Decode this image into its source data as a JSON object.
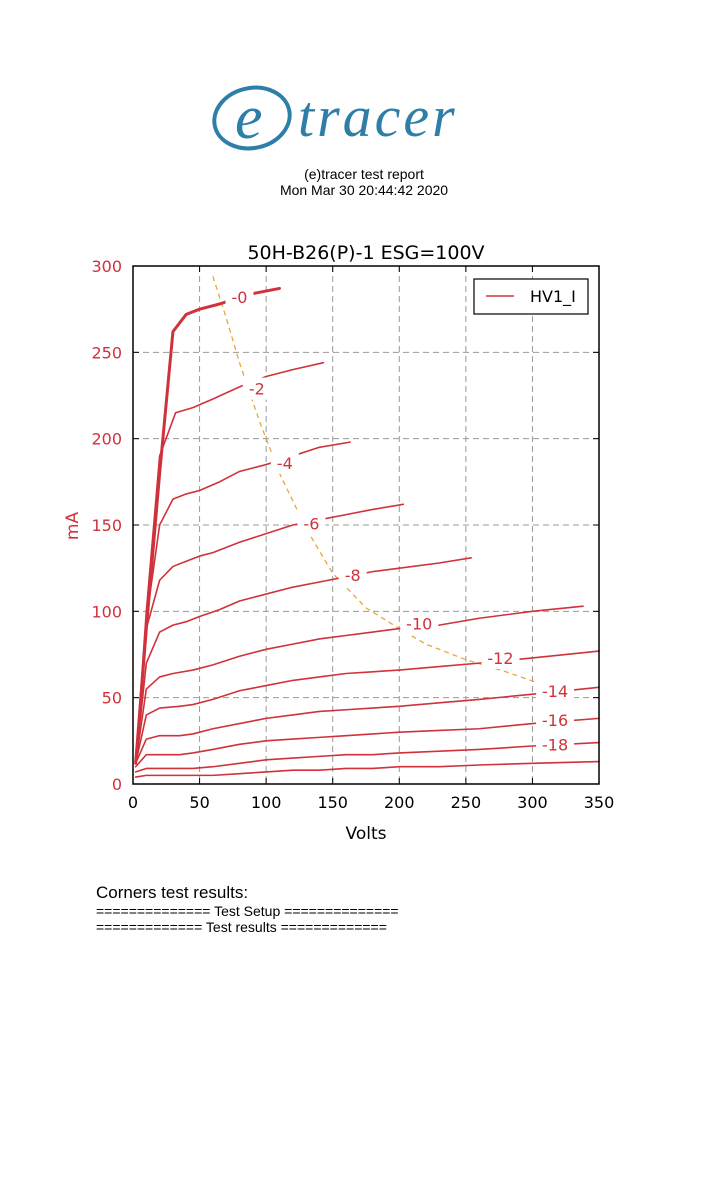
{
  "header": {
    "logo_text": "(e)tracer",
    "report_title": "(e)tracer test report",
    "report_date": "Mon Mar 30 20:44:42 2020"
  },
  "colors": {
    "curve": "#d0323c",
    "axis_text": "#d0323c",
    "load_line": "#e8a838",
    "grid": "#999999",
    "logo": "#2e7fa8"
  },
  "chart_data": {
    "type": "line",
    "title": "50H-B26(P)-1 ESG=100V",
    "xlabel": "Volts",
    "ylabel": "mA",
    "xlim": [
      0,
      350
    ],
    "ylim": [
      0,
      300
    ],
    "xticks": [
      0,
      50,
      100,
      150,
      200,
      250,
      300,
      350
    ],
    "yticks": [
      0,
      50,
      100,
      150,
      200,
      250,
      300
    ],
    "grid": true,
    "legend": {
      "position": "top-right",
      "entries": [
        "HV1_I"
      ]
    },
    "series": [
      {
        "label": "-0",
        "points": [
          [
            2,
            12
          ],
          [
            10,
            90
          ],
          [
            20,
            180
          ],
          [
            30,
            262
          ],
          [
            40,
            272
          ],
          [
            50,
            275
          ],
          [
            65,
            278
          ],
          [
            90,
            284
          ],
          [
            110,
            287
          ]
        ]
      },
      {
        "label": "-2",
        "points": [
          [
            2,
            12
          ],
          [
            10,
            100
          ],
          [
            20,
            190
          ],
          [
            32,
            215
          ],
          [
            45,
            218
          ],
          [
            60,
            223
          ],
          [
            80,
            230
          ],
          [
            100,
            236
          ],
          [
            120,
            240
          ],
          [
            143,
            244
          ]
        ]
      },
      {
        "label": "-4",
        "points": [
          [
            2,
            12
          ],
          [
            10,
            95
          ],
          [
            20,
            150
          ],
          [
            30,
            165
          ],
          [
            40,
            168
          ],
          [
            50,
            170
          ],
          [
            65,
            175
          ],
          [
            80,
            181
          ],
          [
            100,
            185
          ],
          [
            120,
            190
          ],
          [
            140,
            195
          ],
          [
            163,
            198
          ]
        ]
      },
      {
        "label": "-6",
        "points": [
          [
            2,
            12
          ],
          [
            10,
            90
          ],
          [
            20,
            118
          ],
          [
            30,
            126
          ],
          [
            40,
            129
          ],
          [
            50,
            132
          ],
          [
            60,
            134
          ],
          [
            80,
            140
          ],
          [
            100,
            145
          ],
          [
            120,
            150
          ],
          [
            140,
            153
          ],
          [
            160,
            156
          ],
          [
            180,
            159
          ],
          [
            203,
            162
          ]
        ]
      },
      {
        "label": "-8",
        "points": [
          [
            2,
            12
          ],
          [
            10,
            70
          ],
          [
            20,
            88
          ],
          [
            30,
            92
          ],
          [
            40,
            94
          ],
          [
            50,
            97
          ],
          [
            65,
            101
          ],
          [
            80,
            106
          ],
          [
            100,
            110
          ],
          [
            120,
            114
          ],
          [
            140,
            117
          ],
          [
            160,
            120
          ],
          [
            180,
            123
          ],
          [
            200,
            125
          ],
          [
            230,
            128
          ],
          [
            254,
            131
          ]
        ]
      },
      {
        "label": "-10",
        "points": [
          [
            2,
            12
          ],
          [
            10,
            55
          ],
          [
            20,
            62
          ],
          [
            30,
            64
          ],
          [
            45,
            66
          ],
          [
            60,
            69
          ],
          [
            80,
            74
          ],
          [
            100,
            78
          ],
          [
            120,
            81
          ],
          [
            140,
            84
          ],
          [
            160,
            86
          ],
          [
            180,
            88
          ],
          [
            200,
            90
          ],
          [
            230,
            92
          ],
          [
            260,
            96
          ],
          [
            300,
            100
          ],
          [
            338,
            103
          ]
        ]
      },
      {
        "label": "-12",
        "points": [
          [
            2,
            12
          ],
          [
            10,
            40
          ],
          [
            20,
            44
          ],
          [
            35,
            45
          ],
          [
            45,
            46
          ],
          [
            60,
            49
          ],
          [
            80,
            54
          ],
          [
            100,
            57
          ],
          [
            120,
            60
          ],
          [
            140,
            62
          ],
          [
            160,
            64
          ],
          [
            180,
            65
          ],
          [
            200,
            66
          ],
          [
            230,
            68
          ],
          [
            260,
            70
          ],
          [
            300,
            73
          ],
          [
            350,
            77
          ]
        ]
      },
      {
        "label": "-14",
        "points": [
          [
            2,
            12
          ],
          [
            10,
            26
          ],
          [
            20,
            28
          ],
          [
            35,
            28
          ],
          [
            45,
            29
          ],
          [
            60,
            32
          ],
          [
            80,
            35
          ],
          [
            100,
            38
          ],
          [
            120,
            40
          ],
          [
            140,
            42
          ],
          [
            160,
            43
          ],
          [
            180,
            44
          ],
          [
            200,
            45
          ],
          [
            230,
            47
          ],
          [
            260,
            49
          ],
          [
            300,
            52
          ],
          [
            350,
            56
          ]
        ]
      },
      {
        "label": "-16",
        "points": [
          [
            2,
            10
          ],
          [
            10,
            17
          ],
          [
            20,
            17
          ],
          [
            35,
            17
          ],
          [
            45,
            18
          ],
          [
            60,
            20
          ],
          [
            80,
            23
          ],
          [
            100,
            25
          ],
          [
            120,
            26
          ],
          [
            140,
            27
          ],
          [
            160,
            28
          ],
          [
            180,
            29
          ],
          [
            200,
            30
          ],
          [
            230,
            31
          ],
          [
            260,
            32
          ],
          [
            300,
            35
          ],
          [
            350,
            38
          ]
        ]
      },
      {
        "label": "-18",
        "points": [
          [
            2,
            7
          ],
          [
            10,
            9
          ],
          [
            20,
            9
          ],
          [
            35,
            9
          ],
          [
            45,
            9
          ],
          [
            60,
            10
          ],
          [
            80,
            12
          ],
          [
            100,
            14
          ],
          [
            120,
            15
          ],
          [
            140,
            16
          ],
          [
            160,
            17
          ],
          [
            180,
            17
          ],
          [
            200,
            18
          ],
          [
            230,
            19
          ],
          [
            260,
            20
          ],
          [
            300,
            22
          ],
          [
            350,
            24
          ]
        ]
      },
      {
        "label": "",
        "points": [
          [
            2,
            4
          ],
          [
            10,
            5
          ],
          [
            20,
            5
          ],
          [
            35,
            5
          ],
          [
            45,
            5
          ],
          [
            60,
            5
          ],
          [
            80,
            6
          ],
          [
            100,
            7
          ],
          [
            120,
            8
          ],
          [
            140,
            8
          ],
          [
            160,
            9
          ],
          [
            180,
            9
          ],
          [
            200,
            10
          ],
          [
            230,
            10
          ],
          [
            260,
            11
          ],
          [
            300,
            12
          ],
          [
            350,
            13
          ]
        ]
      }
    ],
    "load_line": [
      [
        60,
        294
      ],
      [
        70,
        270
      ],
      [
        80,
        244
      ],
      [
        95,
        210
      ],
      [
        110,
        180
      ],
      [
        130,
        148
      ],
      [
        150,
        122
      ],
      [
        175,
        102
      ],
      [
        200,
        90
      ],
      [
        220,
        81
      ],
      [
        250,
        72
      ],
      [
        280,
        65
      ],
      [
        310,
        57
      ],
      [
        330,
        53
      ]
    ],
    "curve_labels": [
      {
        "text": "-0",
        "x": 80,
        "y": 282
      },
      {
        "text": "-2",
        "x": 93,
        "y": 229
      },
      {
        "text": "-4",
        "x": 114,
        "y": 186
      },
      {
        "text": "-6",
        "x": 134,
        "y": 151
      },
      {
        "text": "-8",
        "x": 165,
        "y": 121
      },
      {
        "text": "-10",
        "x": 215,
        "y": 93
      },
      {
        "text": "-12",
        "x": 276,
        "y": 73
      },
      {
        "text": "-14",
        "x": 317,
        "y": 54
      },
      {
        "text": "-16",
        "x": 317,
        "y": 37
      },
      {
        "text": "-18",
        "x": 317,
        "y": 23
      }
    ]
  },
  "report": {
    "corners_title": "Corners test results:",
    "test_setup": "============== Test Setup ==============",
    "test_results": "============= Test results ============="
  }
}
